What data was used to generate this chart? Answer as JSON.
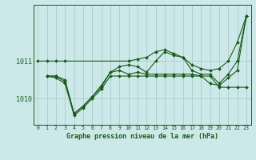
{
  "background_color": "#cce8e8",
  "grid_color": "#aacccc",
  "line_color": "#1a5c1a",
  "title": "Graphe pression niveau de la mer (hPa)",
  "xlim": [
    -0.5,
    23.5
  ],
  "ylim": [
    1009.3,
    1012.5
  ],
  "yticks": [
    1010,
    1011
  ],
  "xticks": [
    0,
    1,
    2,
    3,
    4,
    5,
    6,
    7,
    8,
    9,
    10,
    11,
    12,
    13,
    14,
    15,
    16,
    17,
    18,
    19,
    20,
    21,
    22,
    23
  ],
  "series": [
    {
      "x": [
        0,
        1,
        2,
        3,
        10,
        11,
        12,
        13,
        14,
        15,
        16,
        17,
        18,
        19,
        20,
        21,
        22,
        23
      ],
      "y": [
        1011.0,
        1011.0,
        1011.0,
        1011.0,
        1011.0,
        1011.05,
        1011.1,
        1011.25,
        1011.3,
        1011.2,
        1011.1,
        1010.9,
        1010.8,
        1010.75,
        1010.8,
        1011.0,
        1011.5,
        1012.2
      ]
    },
    {
      "x": [
        1,
        2,
        3,
        4,
        5,
        6,
        7,
        8,
        9,
        10,
        11,
        12,
        13,
        14,
        15,
        16,
        17,
        18,
        19,
        20,
        21,
        22,
        23
      ],
      "y": [
        1010.6,
        1010.6,
        1010.5,
        1009.6,
        1009.8,
        1010.05,
        1010.35,
        1010.7,
        1010.85,
        1010.9,
        1010.85,
        1010.7,
        1011.0,
        1011.25,
        1011.15,
        1011.1,
        1010.75,
        1010.65,
        1010.65,
        1010.4,
        1010.65,
        1011.0,
        1012.2
      ]
    },
    {
      "x": [
        1,
        2,
        3,
        4,
        5,
        6,
        7,
        8,
        9,
        10,
        11,
        12,
        13,
        14,
        15,
        16,
        17,
        18,
        19,
        20,
        21,
        22,
        23
      ],
      "y": [
        1010.6,
        1010.6,
        1010.45,
        1009.6,
        1009.8,
        1010.05,
        1010.3,
        1010.7,
        1010.75,
        1010.65,
        1010.7,
        1010.65,
        1010.65,
        1010.65,
        1010.65,
        1010.65,
        1010.65,
        1010.6,
        1010.4,
        1010.35,
        1010.55,
        1010.75,
        1012.2
      ]
    },
    {
      "x": [
        1,
        2,
        3,
        4,
        5,
        6,
        7,
        8,
        9,
        10,
        11,
        12,
        13,
        14,
        15,
        16,
        17,
        18,
        19,
        20,
        21,
        22,
        23
      ],
      "y": [
        1010.6,
        1010.55,
        1010.4,
        1009.55,
        1009.75,
        1010.0,
        1010.25,
        1010.6,
        1010.6,
        1010.6,
        1010.6,
        1010.6,
        1010.6,
        1010.6,
        1010.6,
        1010.6,
        1010.6,
        1010.6,
        1010.6,
        1010.3,
        1010.3,
        1010.3,
        1010.3
      ]
    }
  ]
}
